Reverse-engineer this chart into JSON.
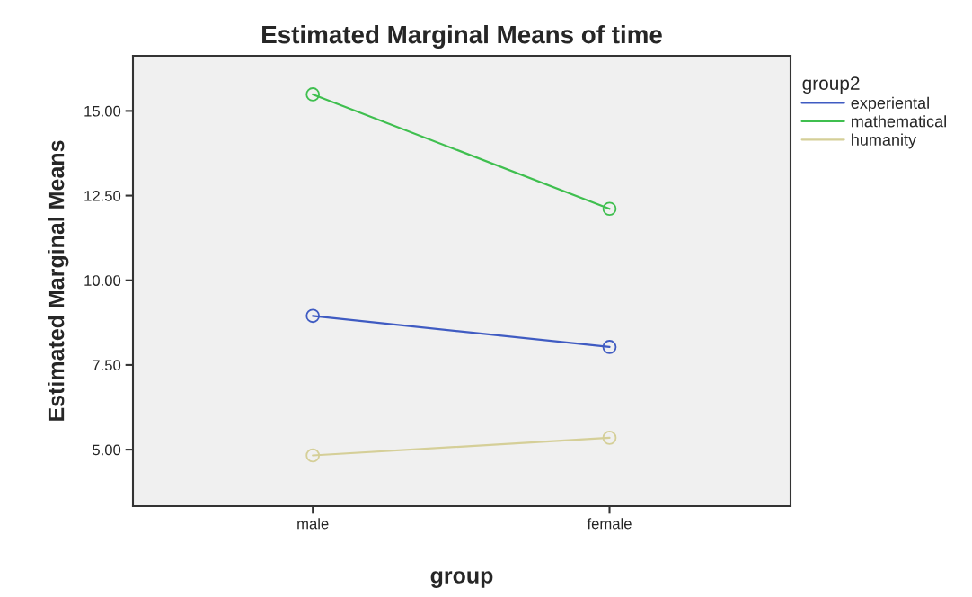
{
  "chart_data": {
    "type": "line",
    "title": "Estimated Marginal Means of time",
    "xlabel": "group",
    "ylabel": "Estimated Marginal Means",
    "legend_title": "group2",
    "categories": [
      "male",
      "female"
    ],
    "series": [
      {
        "name": "experiental",
        "color": "#3f5bc2",
        "values": [
          8.95,
          8.03
        ]
      },
      {
        "name": "mathematical",
        "color": "#3fbf4f",
        "values": [
          15.49,
          12.11
        ]
      },
      {
        "name": "humanity",
        "color": "#d5cf98",
        "values": [
          4.83,
          5.35
        ]
      }
    ],
    "ylim": [
      3.33,
      16.63
    ],
    "yticks": [
      {
        "value": 5,
        "label": "5.00"
      },
      {
        "value": 7.5,
        "label": "7.50"
      },
      {
        "value": 10,
        "label": "10.00"
      },
      {
        "value": 12.5,
        "label": "12.50"
      },
      {
        "value": 15,
        "label": "15.00"
      }
    ],
    "marker": "circle",
    "line_style": "solid",
    "grid": false,
    "legend": "top right"
  }
}
